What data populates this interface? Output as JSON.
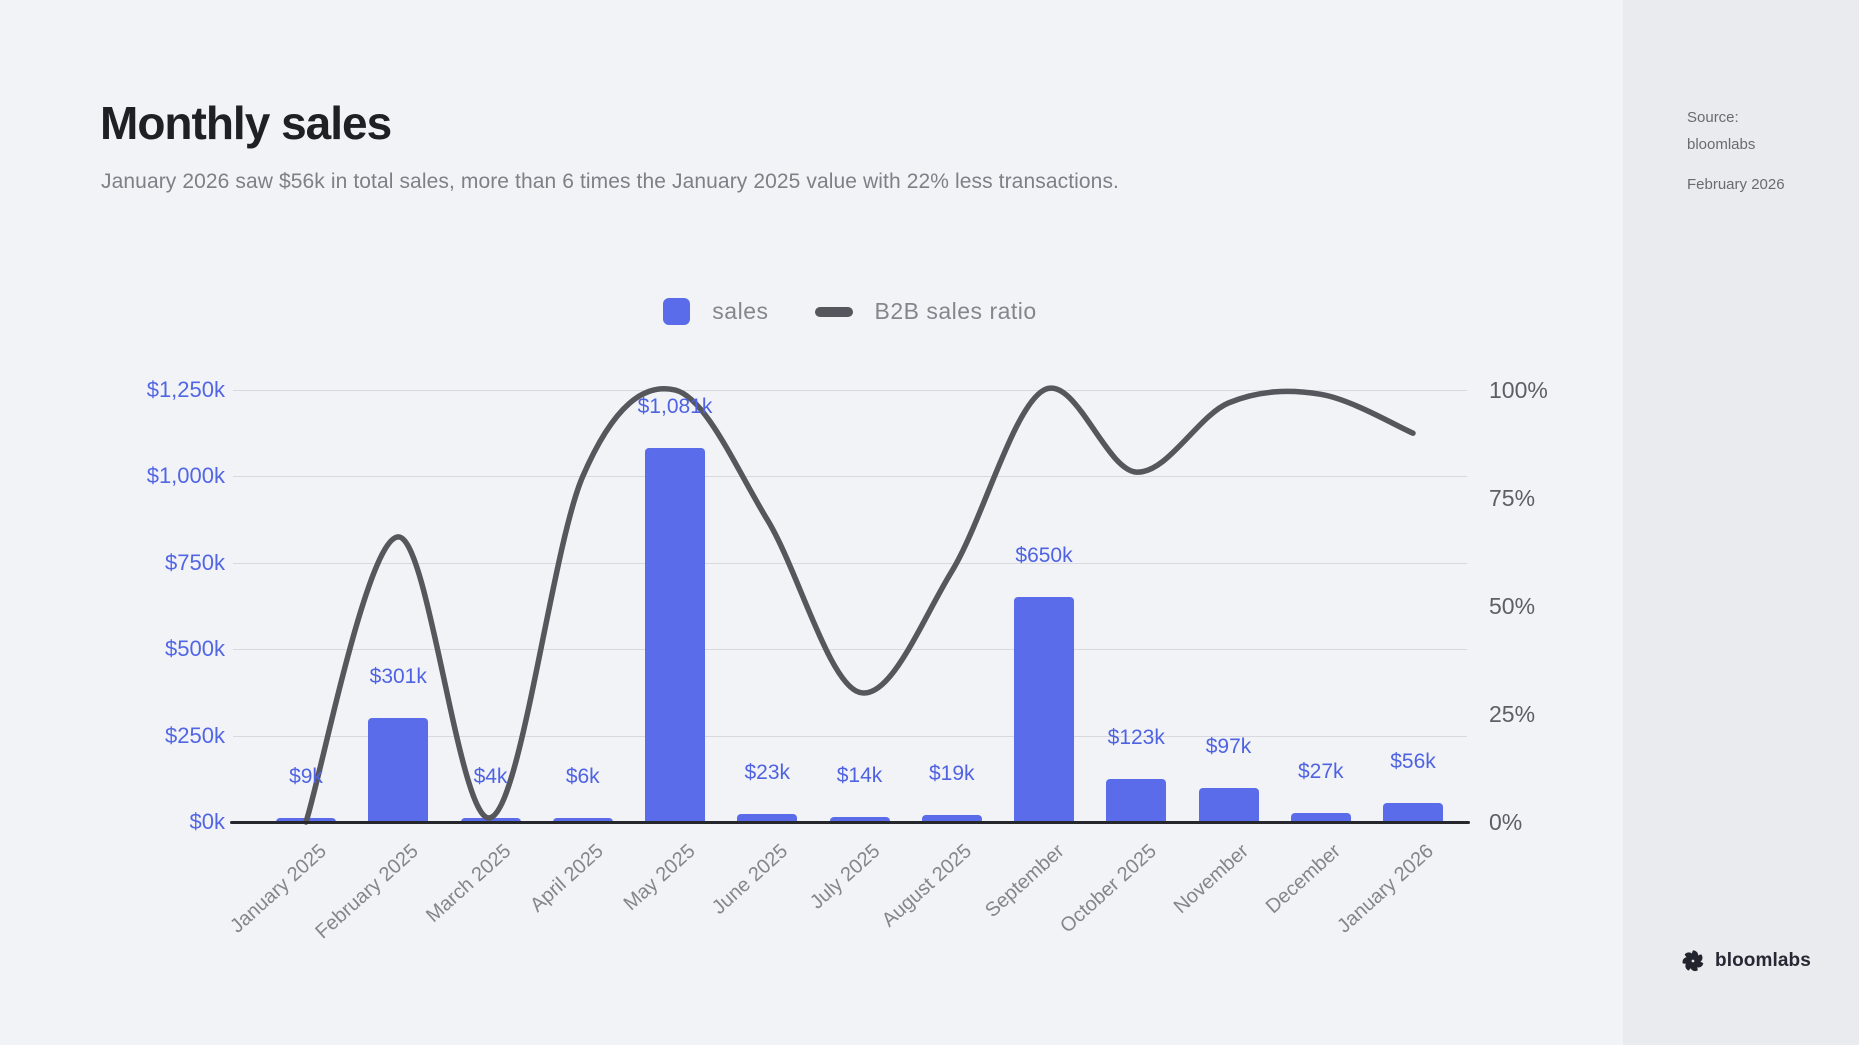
{
  "header": {
    "title": "Monthly sales",
    "subtitle": "January 2026 saw $56k in total sales, more than 6 times the January 2025 value with 22% less transactions."
  },
  "legend": {
    "items": [
      {
        "label": "sales",
        "type": "bar"
      },
      {
        "label": "B2B sales ratio",
        "type": "line"
      }
    ]
  },
  "sidebar": {
    "source_label": "Source:",
    "source_name": "bloomlabs",
    "date": "February 2026",
    "brand": "bloomlabs"
  },
  "colors": {
    "background": "#f2f3f7",
    "sidebar_background": "#eaebee",
    "bar_blue": "#5a6ce9",
    "value_label_blue": "#4f63e2",
    "left_axis_blue": "#5266e4",
    "line_gray": "#55575d",
    "grid_gray": "#d8d9de",
    "baseline_dark": "#26272c",
    "title_dark": "#1f2025",
    "muted_text": "#84868d"
  },
  "chart_data": {
    "type": "combo",
    "title": "Monthly sales",
    "categories": [
      "January 2025",
      "February 2025",
      "March 2025",
      "April 2025",
      "May 2025",
      "June 2025",
      "July 2025",
      "August 2025",
      "September",
      "October 2025",
      "November",
      "December",
      "January 2026"
    ],
    "series": [
      {
        "name": "sales",
        "type": "bar",
        "unit": "$k",
        "values": [
          9,
          301,
          4,
          6,
          1081,
          23,
          14,
          19,
          650,
          123,
          97,
          27,
          56
        ],
        "value_labels": [
          "$9k",
          "$301k",
          "$4k",
          "$6k",
          "$1,081k",
          "$23k",
          "$14k",
          "$19k",
          "$650k",
          "$123k",
          "$97k",
          "$27k",
          "$56k"
        ]
      },
      {
        "name": "B2B sales ratio",
        "type": "line",
        "unit": "%",
        "values": [
          0,
          66,
          1,
          80,
          100,
          70,
          30,
          58,
          100,
          81,
          97,
          99,
          90
        ]
      }
    ],
    "left_axis": {
      "ticks": [
        "$1,250k",
        "$1,000k",
        "$750k",
        "$500k",
        "$250k",
        "$0k"
      ],
      "range": [
        0,
        1250
      ],
      "unit": "$k"
    },
    "right_axis": {
      "ticks": [
        "100%",
        "75%",
        "50%",
        "25%",
        "0%"
      ],
      "range": [
        0,
        100
      ],
      "unit": "%"
    },
    "grid": true,
    "legend_position": "top-center"
  }
}
